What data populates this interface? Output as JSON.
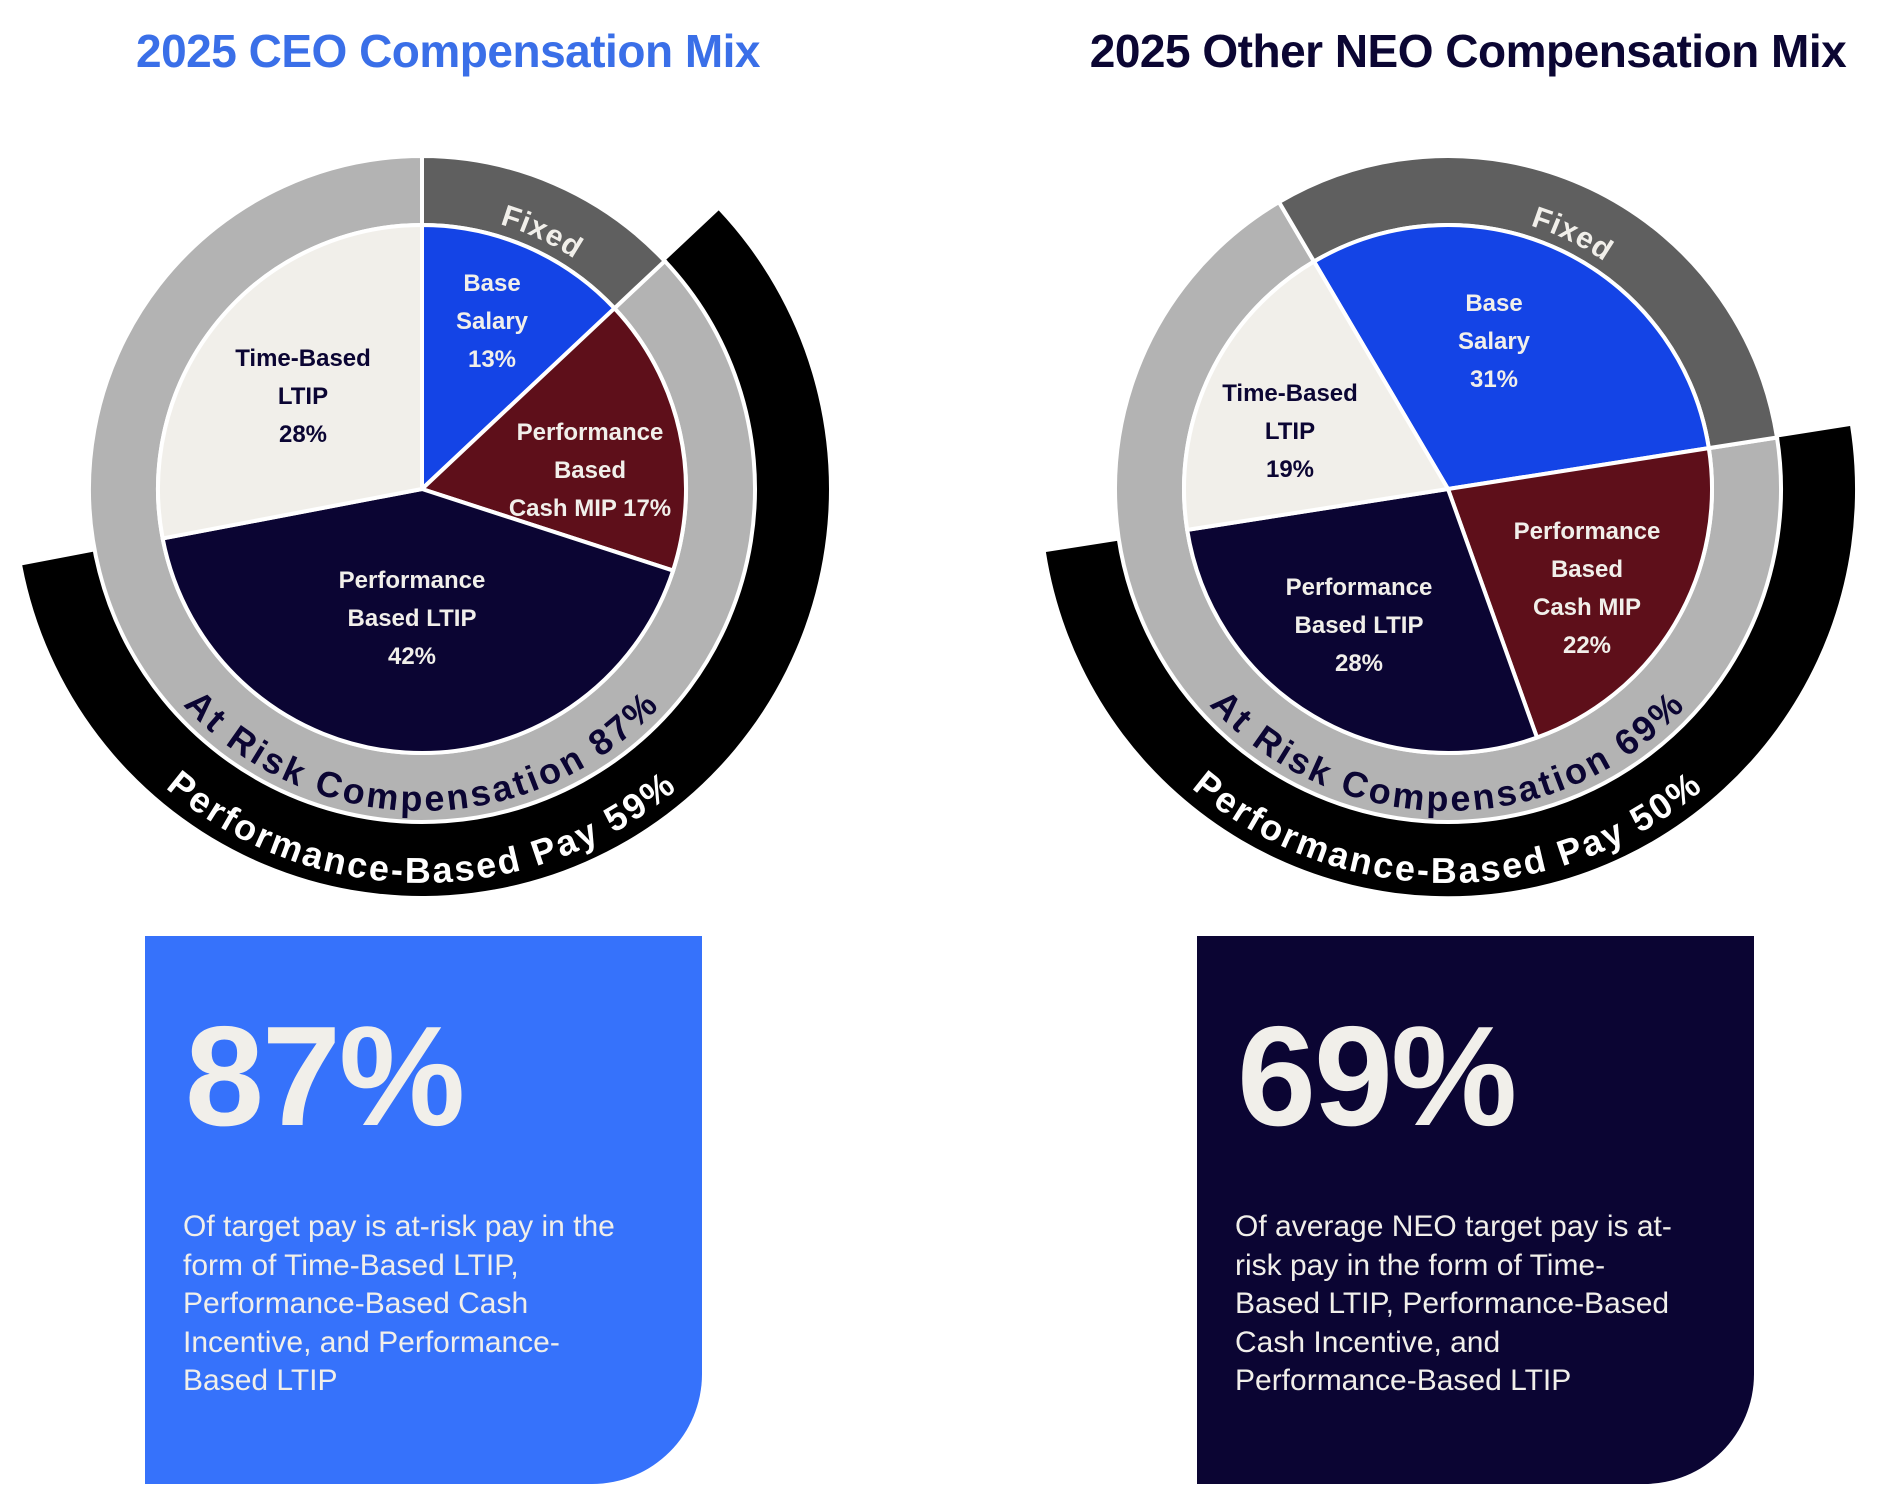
{
  "chart_data": [
    {
      "type": "pie",
      "title": "2025 CEO Compensation Mix",
      "slices": [
        {
          "name": "Base Salary",
          "label_lines": [
            "Base",
            "Salary",
            "13%"
          ],
          "value": 13,
          "color": "#1444e6",
          "text_color": "#f1efea"
        },
        {
          "name": "Performance Based Cash MIP",
          "label_lines": [
            "Performance",
            "Based",
            "Cash MIP 17%"
          ],
          "value": 17,
          "color": "#5e0f1a",
          "text_color": "#f1efea"
        },
        {
          "name": "Performance Based LTIP",
          "label_lines": [
            "Performance",
            "Based LTIP",
            "42%"
          ],
          "value": 42,
          "color": "#0b0533",
          "text_color": "#f1efea"
        },
        {
          "name": "Time-Based LTIP",
          "label_lines": [
            "Time-Based",
            "LTIP",
            "28%"
          ],
          "value": 28,
          "color": "#f1efea",
          "text_color": "#0b0533"
        }
      ],
      "rings": {
        "fixed_label": "Fixed",
        "fixed_color": "#5f5f5f",
        "at_risk_label": "At Risk Compensation 87%",
        "at_risk_value": 87,
        "at_risk_color": "#b3b3b3",
        "performance_label": "Performance-Based Pay 59%",
        "performance_value": 59,
        "performance_color": "#000000"
      }
    },
    {
      "type": "pie",
      "title": "2025 Other NEO Compensation Mix",
      "slices": [
        {
          "name": "Base Salary",
          "label_lines": [
            "Base",
            "Salary",
            "31%"
          ],
          "value": 31,
          "color": "#1444e6",
          "text_color": "#f1efea"
        },
        {
          "name": "Performance Based Cash MIP",
          "label_lines": [
            "Performance",
            "Based",
            "Cash MIP",
            "22%"
          ],
          "value": 22,
          "color": "#5e0f1a",
          "text_color": "#f1efea"
        },
        {
          "name": "Performance Based LTIP",
          "label_lines": [
            "Performance",
            "Based LTIP",
            "28%"
          ],
          "value": 28,
          "color": "#0b0533",
          "text_color": "#f1efea"
        },
        {
          "name": "Time-Based LTIP",
          "label_lines": [
            "Time-Based",
            "LTIP",
            "19%"
          ],
          "value": 19,
          "color": "#f1efea",
          "text_color": "#0b0533"
        }
      ],
      "rings": {
        "fixed_label": "Fixed",
        "fixed_color": "#5f5f5f",
        "at_risk_label": "At Risk Compensation 69%",
        "at_risk_value": 69,
        "at_risk_color": "#b3b3b3",
        "performance_label": "Performance-Based Pay 50%",
        "performance_value": 50,
        "performance_color": "#000000"
      }
    }
  ],
  "cards": {
    "ceo": {
      "big_value": "87%",
      "body_lines": [
        "Of target pay is at-risk pay in the",
        "form of Time-Based LTIP,",
        "Performance-Based Cash",
        "Incentive, and Performance-",
        "Based LTIP"
      ],
      "color": "#3672fb"
    },
    "neo": {
      "big_value": "69%",
      "body_lines": [
        "Of average NEO target pay is at-",
        "risk pay in the form of Time-",
        "Based LTIP, Performance-Based",
        "Cash Incentive, and",
        "Performance-Based LTIP"
      ],
      "color": "#0b0533"
    }
  }
}
